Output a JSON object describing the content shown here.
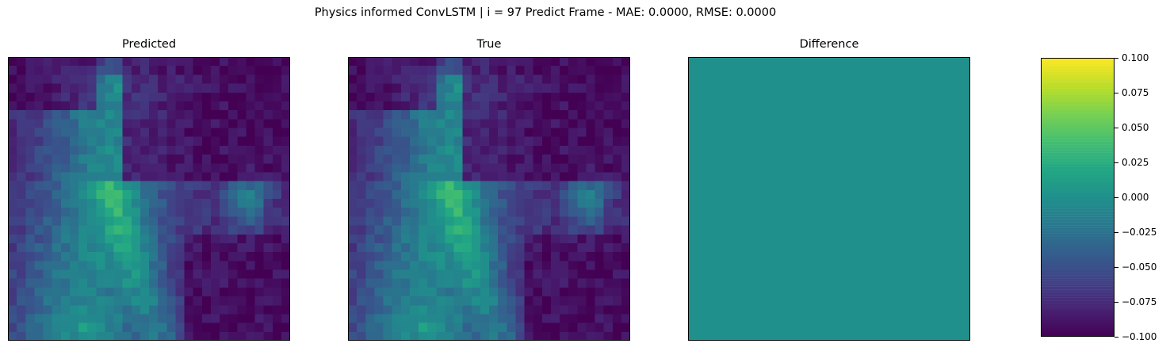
{
  "suptitle": "Physics informed ConvLSTM | i = 97 Predict Frame - MAE: 0.0000, RMSE: 0.0000",
  "chart_data": {
    "type": "heatmap",
    "panels": [
      {
        "title": "Predicted",
        "kind": "field"
      },
      {
        "title": "True",
        "kind": "field"
      },
      {
        "title": "Difference",
        "kind": "constant",
        "value": 0.0
      }
    ],
    "grid_size": [
      32,
      32
    ],
    "colormap": "viridis",
    "colorbar": {
      "vmin": -0.1,
      "vmax": 0.1,
      "ticks": [
        -0.1,
        -0.075,
        -0.05,
        -0.025,
        0.0,
        0.025,
        0.05,
        0.075,
        0.1
      ],
      "tick_labels": [
        "−0.100",
        "−0.075",
        "−0.050",
        "−0.025",
        "0.000",
        "0.025",
        "0.050",
        "0.075",
        "0.100"
      ]
    },
    "axes_ticks": "none",
    "colors": {
      "difference_fill": "#21918c",
      "low": "#440154",
      "high": "#fde725"
    }
  }
}
